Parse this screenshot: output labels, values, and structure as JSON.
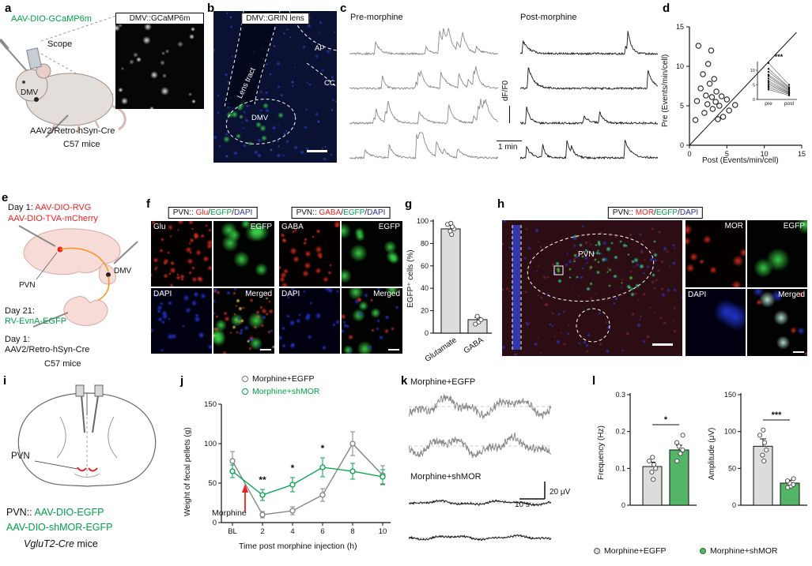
{
  "colors": {
    "red": "#e8231f",
    "green": "#00a04a",
    "blue": "#2e3192",
    "gray_trace": "#8a8a8a",
    "dark_trace": "#1a1a1a",
    "bar_gray": "#dcdcdc",
    "bar_green": "#54b566",
    "line_gray": "#808080",
    "line_green": "#00a04a",
    "arrow_red": "#e8231f",
    "orange": "#f7941d"
  },
  "panels": {
    "a": {
      "label": "a",
      "virus1": "AAV-DIO-GCaMP6m",
      "scope": "Scope",
      "dmv": "DMV",
      "virus2": "AAV2/Retro-hSyn-Cre",
      "mice": "C57 mice",
      "inset_title": "DMV::GCaMP6m"
    },
    "b": {
      "label": "b",
      "title": "DMV::GRIN lens",
      "ap": "AP",
      "lens_tract": "Lens tract",
      "dmv": "DMV",
      "cc": "CC"
    },
    "c": {
      "label": "c",
      "pre_title": "Pre-morphine",
      "post_title": "Post-morphine",
      "ylabel": "dF/F0",
      "scalebar": "1 min"
    },
    "d": {
      "label": "d"
    },
    "e": {
      "label": "e",
      "day1a": "Day 1:",
      "virus_rvg": "AAV-DIO-RVG",
      "virus_tva": "AAV-DIO-TVA-mCherry",
      "pvn": "PVN",
      "dmv": "DMV",
      "day21": "Day 21:",
      "virus_rv": "RV-EvnA-EGFP",
      "day1b": "Day 1:",
      "virus_retro": "AAV2/Retro-hSyn-Cre",
      "mice": "C57 mice"
    },
    "f": {
      "label": "f",
      "left": {
        "prefix": "PVN::",
        "red": "Glu",
        "sep1": "/",
        "green": "EGFP",
        "sep2": "/",
        "blue": "DAPI",
        "q1": "Glu",
        "q2": "EGFP",
        "q3": "DAPI",
        "q4": "Merged"
      },
      "right": {
        "prefix": "PVN::",
        "red": "GABA",
        "sep1": "/",
        "green": "EGFP",
        "sep2": "/",
        "blue": "DAPI",
        "q1": "GABA",
        "q2": "EGFP",
        "q3": "DAPI",
        "q4": "Merged"
      }
    },
    "g": {
      "label": "g"
    },
    "h": {
      "label": "h",
      "title": {
        "prefix": "PVN::",
        "red": "MOR",
        "sep1": "/",
        "green": "EGFP",
        "sep2": "/",
        "blue": "DAPI"
      },
      "region": "PVN",
      "q1": "MOR",
      "q2": "EGFP",
      "q3": "DAPI",
      "q4": "Merged"
    },
    "i": {
      "label": "i",
      "pvn": "PVN",
      "line1_prefix": "PVN::",
      "line1": "AAV-DIO-EGFP",
      "line2": "AAV-DIO-shMOR-EGFP",
      "strain": "VgluT2-Cre",
      "strain_suffix": " mice"
    },
    "j": {
      "label": "j"
    },
    "k": {
      "label": "k",
      "trace1_title": "Morphine+EGFP",
      "trace2_title": "Morphine+shMOR",
      "scale_time": "10 s",
      "scale_amp": "20 μV"
    },
    "l": {
      "label": "l"
    }
  },
  "chart_data": [
    {
      "id": "d",
      "type": "scatter",
      "xlabel": "Post (Events/min/cell)",
      "ylabel": "Pre (Events/min/cell)",
      "xlim": [
        0,
        15
      ],
      "ylim": [
        0,
        15
      ],
      "xticks": [
        0,
        5,
        10,
        15
      ],
      "yticks": [
        0,
        5,
        10,
        15
      ],
      "diagonal": true,
      "significance": "***",
      "points": [
        [
          0.8,
          3.2
        ],
        [
          1.0,
          5.6
        ],
        [
          1.2,
          12.6
        ],
        [
          1.5,
          7.2
        ],
        [
          1.8,
          9.0
        ],
        [
          2.0,
          4.1
        ],
        [
          2.2,
          6.3
        ],
        [
          2.4,
          5.2
        ],
        [
          2.5,
          10.3
        ],
        [
          2.7,
          7.8
        ],
        [
          2.9,
          12.0
        ],
        [
          3.0,
          6.1
        ],
        [
          3.1,
          4.6
        ],
        [
          3.3,
          8.4
        ],
        [
          3.5,
          5.5
        ],
        [
          3.6,
          6.8
        ],
        [
          3.8,
          3.3
        ],
        [
          4.0,
          5.0
        ],
        [
          4.3,
          6.2
        ],
        [
          4.5,
          3.6
        ],
        [
          5.0,
          5.8
        ],
        [
          5.3,
          4.4
        ],
        [
          6.1,
          5.1
        ]
      ],
      "inset": {
        "xticklabels": [
          "pre",
          "post"
        ],
        "yticks": [
          0,
          5,
          10
        ],
        "pairs": [
          [
            12.5,
            5
          ],
          [
            10.5,
            4.2
          ],
          [
            9.5,
            4
          ],
          [
            8.5,
            3.6
          ],
          [
            8,
            3.2
          ],
          [
            7.2,
            3
          ],
          [
            6.4,
            2.6
          ],
          [
            5.8,
            2.4
          ],
          [
            5.2,
            2.2
          ],
          [
            4.6,
            2
          ],
          [
            4,
            1.8
          ],
          [
            3.4,
            1.4
          ]
        ]
      }
    },
    {
      "id": "g",
      "type": "bar",
      "categories": [
        "Glutamate",
        "GABA"
      ],
      "values": [
        93,
        12
      ],
      "errors": [
        3,
        2
      ],
      "points": [
        [
          88,
          91,
          93,
          95,
          97,
          98
        ],
        [
          8,
          10,
          12,
          15
        ]
      ],
      "ylabel": "EGFP⁺ cells (%)",
      "ylim": [
        0,
        100
      ],
      "yticks": [
        0,
        20,
        40,
        60,
        80,
        100
      ]
    },
    {
      "id": "j",
      "type": "line",
      "categories": [
        "BL",
        "2",
        "4",
        "6",
        "8",
        "10"
      ],
      "series": [
        {
          "name": "Morphine+EGFP",
          "color_key": "line_gray",
          "values": [
            78,
            10,
            15,
            35,
            100,
            60
          ],
          "errors": [
            12,
            4,
            5,
            8,
            15,
            12
          ]
        },
        {
          "name": "Morphine+shMOR",
          "color_key": "line_green",
          "values": [
            65,
            35,
            48,
            70,
            65,
            58
          ],
          "errors": [
            8,
            7,
            9,
            12,
            10,
            9
          ]
        }
      ],
      "ylabel": "Weight of fecal pellets (g)",
      "xlabel": "Time post morphine injection (h)",
      "ylim": [
        0,
        150
      ],
      "yticks": [
        0,
        50,
        100,
        150
      ],
      "significance": [
        {
          "at": "2",
          "mark": "**"
        },
        {
          "at": "4",
          "mark": "*"
        },
        {
          "at": "6",
          "mark": "*"
        }
      ],
      "annotation": {
        "text": "Morphine",
        "arrow": true
      }
    },
    {
      "id": "l_freq",
      "type": "bar",
      "categories": [
        "Morphine+EGFP",
        "Morphine+shMOR"
      ],
      "values": [
        0.105,
        0.15
      ],
      "errors": [
        0.012,
        0.013
      ],
      "points": [
        [
          0.07,
          0.09,
          0.1,
          0.11,
          0.12,
          0.13
        ],
        [
          0.12,
          0.14,
          0.15,
          0.16,
          0.17,
          0.19
        ]
      ],
      "ylabel": "Frequency (Hz)",
      "ylim": [
        0,
        0.3
      ],
      "yticks": [
        0,
        0.1,
        0.2,
        0.3
      ],
      "significance": "*"
    },
    {
      "id": "l_amp",
      "type": "bar",
      "categories": [
        "Morphine+EGFP",
        "Morphine+shMOR"
      ],
      "values": [
        80,
        30
      ],
      "errors": [
        10,
        4
      ],
      "points": [
        [
          60,
          68,
          75,
          85,
          95,
          102
        ],
        [
          24,
          26,
          28,
          30,
          33,
          36
        ]
      ],
      "ylabel": "Amplitude (μV)",
      "ylim": [
        0,
        150
      ],
      "yticks": [
        0,
        50,
        100,
        150
      ],
      "significance": "***"
    }
  ],
  "traces": {
    "c_pre": {
      "kind": "calcium",
      "spikes": [
        11,
        9,
        12,
        10
      ],
      "amp": 20,
      "color_key": "gray_trace"
    },
    "c_post": {
      "kind": "calcium",
      "spikes": [
        3,
        2,
        3,
        5
      ],
      "amp": 28,
      "color_key": "dark_trace"
    },
    "k_egfp": {
      "kind": "emg",
      "amp": 15,
      "color_key": "gray_trace"
    },
    "k_shmor": {
      "kind": "emg",
      "amp": 3.5,
      "color_key": "dark_trace"
    }
  },
  "micro": {
    "a_inset": {
      "bg": "#060606",
      "blobs": [
        {
          "color": "#f0f0f0",
          "n": 12,
          "min": 5,
          "max": 11
        },
        {
          "color": "#909090",
          "n": 10,
          "min": 4,
          "max": 8
        }
      ]
    },
    "b_img": {
      "bg": "#0a1133",
      "blobs": [
        {
          "color": "#2c41c8",
          "n": 75,
          "min": 3,
          "max": 6
        },
        {
          "color": "#4a5fe0",
          "n": 30,
          "min": 2,
          "max": 4
        },
        {
          "color": "#35d04a",
          "n": 13,
          "min": 6,
          "max": 12,
          "region": [
            0.1,
            0.6,
            0.62,
            0.92
          ]
        }
      ]
    },
    "f_glu": {
      "bg": "#050000",
      "blobs": [
        {
          "color": "#e03020",
          "n": 46,
          "min": 3,
          "max": 9
        }
      ]
    },
    "f_egfp1": {
      "bg": "#000300",
      "blobs": [
        {
          "color": "#3ddc4a",
          "n": 8,
          "min": 12,
          "max": 26
        }
      ]
    },
    "f_dapi1": {
      "bg": "#000010",
      "blobs": [
        {
          "color": "#2438d8",
          "n": 26,
          "min": 4,
          "max": 9
        }
      ]
    },
    "f_mrg1": {
      "bg": "#020202",
      "blobs": [
        {
          "color": "#e03020",
          "n": 30,
          "min": 3,
          "max": 8
        },
        {
          "color": "#3ddc4a",
          "n": 6,
          "min": 12,
          "max": 22
        },
        {
          "color": "#2438d8",
          "n": 16,
          "min": 4,
          "max": 8
        },
        {
          "color": "#f0e060",
          "n": 8,
          "min": 3,
          "max": 6
        }
      ]
    },
    "f_gaba": {
      "bg": "#050000",
      "blobs": [
        {
          "color": "#e03020",
          "n": 28,
          "min": 4,
          "max": 11
        }
      ]
    },
    "f_egfp2": {
      "bg": "#000300",
      "blobs": [
        {
          "color": "#3ddc4a",
          "n": 8,
          "min": 12,
          "max": 24
        }
      ]
    },
    "f_dapi2": {
      "bg": "#000010",
      "blobs": [
        {
          "color": "#2438d8",
          "n": 24,
          "min": 4,
          "max": 9
        }
      ]
    },
    "f_mrg2": {
      "bg": "#020202",
      "blobs": [
        {
          "color": "#3ddc4a",
          "n": 7,
          "min": 12,
          "max": 22
        },
        {
          "color": "#2438d8",
          "n": 15,
          "min": 4,
          "max": 8
        },
        {
          "color": "#e03020",
          "n": 8,
          "min": 4,
          "max": 8
        }
      ]
    },
    "h_main": {
      "bg": "#2b0d13",
      "blobs": [
        {
          "color": "#8c2433",
          "n": 90,
          "min": 2,
          "max": 5
        },
        {
          "color": "#2a3bd0",
          "n": 65,
          "min": 3,
          "max": 6
        },
        {
          "color": "#39dfae",
          "n": 34,
          "min": 3,
          "max": 7,
          "region": [
            0.25,
            0.12,
            0.85,
            0.55
          ]
        },
        {
          "color": "#49e04a",
          "n": 18,
          "min": 3,
          "max": 6,
          "region": [
            0.3,
            0.15,
            0.8,
            0.5
          ]
        }
      ]
    },
    "h_mor": {
      "bg": "#050000",
      "blobs": [
        {
          "color": "#e03020",
          "n": 10,
          "min": 6,
          "max": 15
        }
      ]
    },
    "h_egfp": {
      "bg": "#000300",
      "blobs": [
        {
          "color": "#3ddc4a",
          "n": 3,
          "min": 20,
          "max": 34
        }
      ]
    },
    "h_dapi": {
      "bg": "#000010",
      "blobs": [
        {
          "color": "#2438d8",
          "n": 2,
          "min": 26,
          "max": 40
        }
      ]
    },
    "h_mrg": {
      "bg": "#020202",
      "blobs": [
        {
          "color": "#bfeee0",
          "n": 3,
          "min": 16,
          "max": 26
        },
        {
          "color": "#2438d8",
          "n": 3,
          "min": 10,
          "max": 18
        },
        {
          "color": "#e03020",
          "n": 4,
          "min": 5,
          "max": 10
        }
      ]
    }
  }
}
